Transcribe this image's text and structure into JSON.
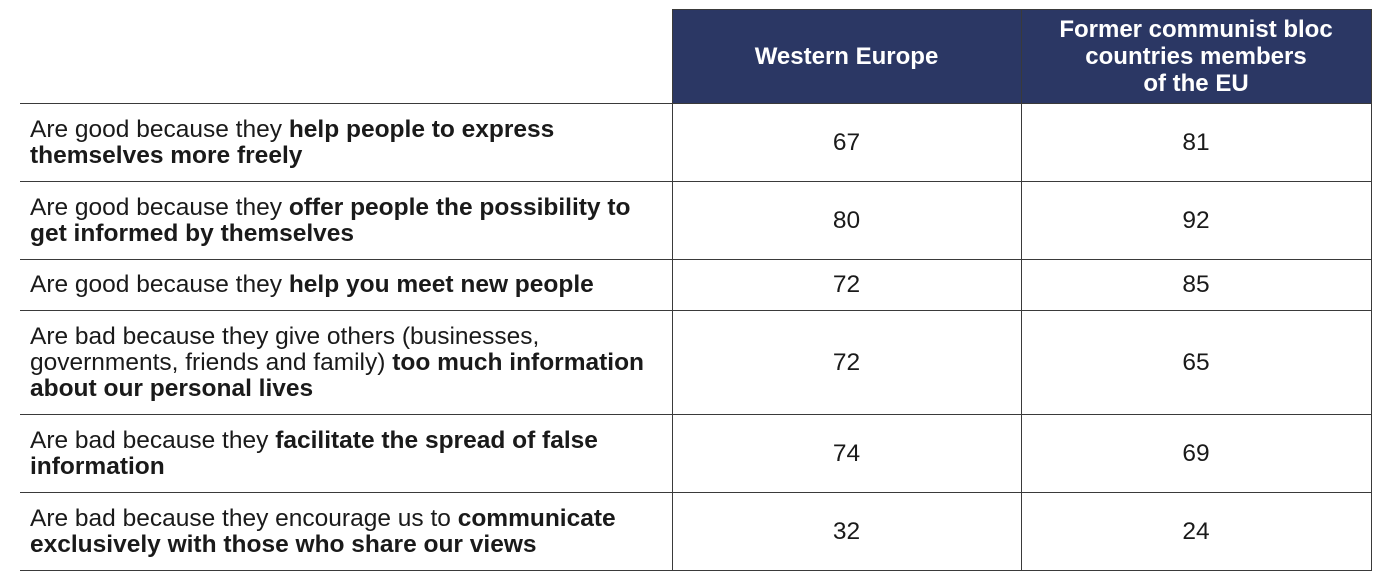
{
  "table": {
    "headers": [
      [
        "Western Europe"
      ],
      [
        "Former communist bloc",
        "countries members",
        "of the EU"
      ]
    ],
    "rows": [
      {
        "label": [
          {
            "text": "Are good because they",
            "bold": false
          },
          {
            "text": "help people to express themselves more freely",
            "bold": true
          }
        ],
        "values": [
          67,
          81
        ]
      },
      {
        "label": [
          {
            "text": "Are good because they",
            "bold": false
          },
          {
            "text": "offer people the possibility to get informed by themselves",
            "bold": true
          }
        ],
        "values": [
          80,
          92
        ]
      },
      {
        "label": [
          {
            "text": "Are good because they",
            "bold": false
          },
          {
            "text": "help you meet new people",
            "bold": true
          }
        ],
        "values": [
          72,
          85
        ]
      },
      {
        "label": [
          {
            "text": "Are bad because they give others (businesses, governments, friends and family)",
            "bold": false
          },
          {
            "text": "too much information about our personal lives",
            "bold": true
          }
        ],
        "values": [
          72,
          65
        ]
      },
      {
        "label": [
          {
            "text": "Are bad because they",
            "bold": false
          },
          {
            "text": "facilitate the spread of false information",
            "bold": true
          }
        ],
        "values": [
          74,
          69
        ]
      },
      {
        "label": [
          {
            "text": "Are bad because they encourage us to",
            "bold": false
          },
          {
            "text": "communicate exclusively with those who share our views",
            "bold": true
          }
        ],
        "values": [
          32,
          24
        ]
      }
    ]
  }
}
